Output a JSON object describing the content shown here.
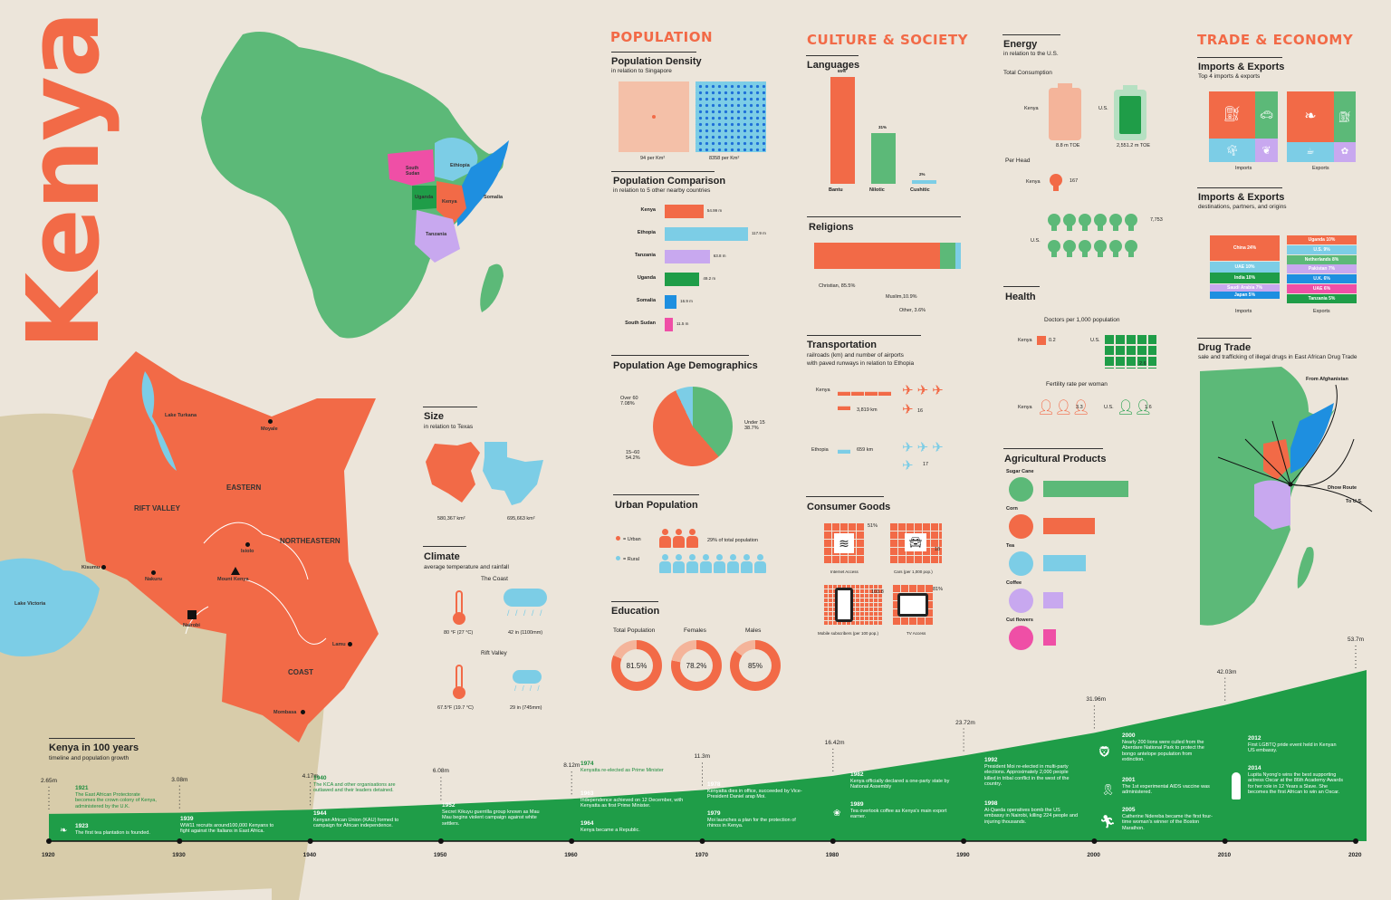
{
  "title": "Kenya",
  "colors": {
    "orange": "#f26a47",
    "green": "#5cb978",
    "darkgreen": "#1f9d48",
    "blue": "#7ccde6",
    "purple": "#c8a8ef",
    "pink": "#ef4fa6",
    "bg": "#ece5da",
    "sand": "#d8ccaa"
  },
  "map": {
    "africa_labels": {
      "south_sudan": "South Sudan",
      "ethiopia": "Ethiopia",
      "uganda": "Uganda",
      "kenya": "Kenya",
      "somalia": "Somalia",
      "tanzania": "Tanzania"
    },
    "kenya_labels": {
      "lake_turkana": "Lake Turkana",
      "moyale": "Moyale",
      "eastern": "EASTERN",
      "rift_valley": "RIFT VALLEY",
      "northeastern": "NORTHEASTERN",
      "isiolo": "Isiolo",
      "kisumu": "Kisumu",
      "nakuru": "Nakuru",
      "mount_kenya": "Mount Kenya",
      "lake_victoria": "Lake Victoria",
      "nairobi": "Nairobi",
      "lamu": "Lamu",
      "coast": "COAST",
      "mombasa": "Mombasa"
    }
  },
  "size": {
    "title": "Size",
    "subtitle": "in relation to Texas",
    "kenya_area": "580,367 km²",
    "texas_area": "695,663 km²"
  },
  "climate": {
    "title": "Climate",
    "subtitle": "average temperature and rainfall",
    "coast_label": "The Coast",
    "coast_temp": "80 °F (27 °C)",
    "coast_rain": "42 in (1100mm)",
    "rift_label": "Rift Valley",
    "rift_temp": "67.5°F (19.7 °C)",
    "rift_rain": "29 in (745mm)"
  },
  "population": {
    "section": "POPULATION",
    "density": {
      "title": "Population Density",
      "subtitle": "in relation to Singapore",
      "kenya": "94 per Km²",
      "singapore": "8358 per Km²"
    },
    "comparison": {
      "title": "Population Comparison",
      "subtitle": "in relation to 5 other nearby countries",
      "rows": [
        {
          "name": "Kenya",
          "value": 54.99,
          "label": "54.99 m",
          "color": "#f26a47"
        },
        {
          "name": "Ethopia",
          "value": 117.9,
          "label": "117.9 m",
          "color": "#7ccde6"
        },
        {
          "name": "Tanzania",
          "value": 63.8,
          "label": "63.8 m",
          "color": "#c8a8ef"
        },
        {
          "name": "Uganda",
          "value": 49.2,
          "label": "49.2 m",
          "color": "#1f9d48"
        },
        {
          "name": "Somalia",
          "value": 16.9,
          "label": "16.9 m",
          "color": "#1e8fe0"
        },
        {
          "name": "South Sudan",
          "value": 11.5,
          "label": "11.5 m",
          "color": "#ef4fa6"
        }
      ]
    },
    "age": {
      "title": "Population Age Demographics",
      "over60": "Over 60",
      "over60_pct": "7.08%",
      "under15": "Under 15",
      "under15_pct": "38.7%",
      "mid": "15–60",
      "mid_pct": "54.2%"
    },
    "urban": {
      "title": "Urban Population",
      "urban": "= Urban",
      "rural": "= Rural",
      "note": "29% of total population"
    },
    "education": {
      "title": "Education",
      "total": "Total Population",
      "females": "Females",
      "males": "Males",
      "total_pct": "81.5%",
      "females_pct": "78.2%",
      "males_pct": "85%",
      "total_val": 81.5,
      "females_val": 78.2,
      "males_val": 85
    }
  },
  "culture": {
    "section": "CULTURE & SOCIETY",
    "languages": {
      "title": "Languages",
      "items": [
        {
          "name": "Bantu",
          "pct": "65%",
          "value": 65,
          "color": "#f26a47"
        },
        {
          "name": "Nilotic",
          "pct": "31%",
          "value": 31,
          "color": "#5cb978"
        },
        {
          "name": "Cushitic",
          "pct": "2%",
          "value": 2,
          "color": "#7ccde6"
        }
      ]
    },
    "religions": {
      "title": "Religions",
      "christian": "Christian, 85.5%",
      "muslim": "Muslim,10.9%",
      "other": "Other, 3.6%"
    },
    "transport": {
      "title": "Transportation",
      "subtitle1": "railroads (km) and number of airports",
      "subtitle2": "with paved runways in relation to Ethopia",
      "kenya": "Kenya",
      "kenya_rail": "3,819 km",
      "kenya_air": "16",
      "ethiopia": "Ethopia",
      "eth_rail": "659 km",
      "eth_air": "17"
    },
    "consumer": {
      "title": "Consumer Goods",
      "internet_pct": "51%",
      "internet": "Internet Access",
      "cars_val": "18",
      "cars": "Cars (per 1,000 pop.)",
      "mobile_val": "103.8",
      "mobile": "Mobile subscribers (per 100 pop.)",
      "tv_pct": "81%",
      "tv": "TV Access"
    }
  },
  "energy": {
    "title": "Energy",
    "subtitle": "in relation to the U.S.",
    "total": "Total Consumption",
    "kenya": "Kenya",
    "us": "U.S.",
    "kenya_val": "8.8 m TOE",
    "us_val": "2,551.2 m TOE",
    "per_head": "Per Head",
    "kenya_head": "167",
    "us_head": "7,753"
  },
  "health": {
    "title": "Health",
    "doctors": "Doctors per 1,000 population",
    "kenya": "Kenya",
    "us": "U.S.",
    "kenya_doc": "0.2",
    "us_doc": "2.6",
    "fertility": "Fertility rate per woman",
    "kenya_fert": "3.3",
    "us_fert": "1.6"
  },
  "agri": {
    "title": "Agricultural Products",
    "items": [
      {
        "name": "Sugar Cane",
        "color": "#5cb978",
        "value": 94
      },
      {
        "name": "Corn",
        "color": "#f26a47",
        "value": 57
      },
      {
        "name": "Tea",
        "color": "#7ccde6",
        "value": 47
      },
      {
        "name": "Coffee",
        "color": "#c8a8ef",
        "value": 22
      },
      {
        "name": "Cut flowers",
        "color": "#ef4fa6",
        "value": 14
      }
    ]
  },
  "trade": {
    "section": "TRADE & ECONOMY",
    "ie1": {
      "title": "Imports & Exports",
      "subtitle": "Top 4 imports & exports",
      "imports": "Imports",
      "exports": "Exports"
    },
    "ie2": {
      "title": "Imports & Exports",
      "subtitle": "destinations, partners, and origins",
      "imports": [
        {
          "label": "China 24%",
          "color": "#f26a47"
        },
        {
          "label": "UAE 10%",
          "color": "#7ccde6"
        },
        {
          "label": "India 10%",
          "color": "#1f9d48"
        },
        {
          "label": "Saudi Arabia 7%",
          "color": "#c8a8ef"
        },
        {
          "label": "Japan 5%",
          "color": "#1e8fe0"
        }
      ],
      "exports": [
        {
          "label": "Uganda 10%",
          "color": "#f26a47"
        },
        {
          "label": "U.S. 9%",
          "color": "#7ccde6"
        },
        {
          "label": "Netherlands 8%",
          "color": "#5cb978"
        },
        {
          "label": "Pakistan 7%",
          "color": "#c8a8ef"
        },
        {
          "label": "U.K. 6%",
          "color": "#1e8fe0"
        },
        {
          "label": "UAE 6%",
          "color": "#ef4fa6"
        },
        {
          "label": "Tanzania 5%",
          "color": "#1f9d48"
        }
      ],
      "imports_lbl": "Imports",
      "exports_lbl": "Exports"
    },
    "drug": {
      "title": "Drug Trade",
      "subtitle": "sale and trafficking of illegal drugs in East African Drug Trade",
      "from": "From Afghanistan",
      "dhow": "Dhow Route",
      "to_us": "To U.S."
    }
  },
  "timeline": {
    "title": "Kenya in 100 years",
    "subtitle": "timeline and population growth",
    "years": [
      "1920",
      "1930",
      "1940",
      "1950",
      "1960",
      "1970",
      "1980",
      "1990",
      "2000",
      "2010",
      "2020"
    ],
    "pop": [
      {
        "year": 1920,
        "label": "2.65m"
      },
      {
        "year": 1930,
        "label": "3.08m"
      },
      {
        "year": 1940,
        "label": "4.17m"
      },
      {
        "year": 1950,
        "label": "6.08m"
      },
      {
        "year": 1960,
        "label": "8.12m"
      },
      {
        "year": 1970,
        "label": "11.3m"
      },
      {
        "year": 1980,
        "label": "16.42m"
      },
      {
        "year": 1990,
        "label": "23.72m"
      },
      {
        "year": 2000,
        "label": "31.96m"
      },
      {
        "year": 2010,
        "label": "42.03m"
      },
      {
        "year": 2020,
        "label": "53.7m"
      }
    ],
    "events": {
      "e1921": {
        "year": "1921",
        "text": "The East African Protectorate becomes the crown colony of Kenya, administered by the U.K."
      },
      "e1923": {
        "year": "1923",
        "text": "The first tea plantation is founded."
      },
      "e1939": {
        "year": "1939",
        "text": "WW11 recruits around100,000 Kenyans to fight against the Italians in East Africa."
      },
      "e1940": {
        "year": "1940",
        "text": "The KCA and other organisations are outlawed and their leaders detained."
      },
      "e1944": {
        "year": "1944",
        "text": "Kenyan African Union (KAU) formed to campaign for African independence."
      },
      "e1952": {
        "year": "1952",
        "text": "Secret Kikuyu guerrilla group known as Mau Mau begins violent campaign against white settlers."
      },
      "e1974": {
        "year": "1974",
        "text": "Kenyatta re-elected as Prime Minister"
      },
      "e1963": {
        "year": "1963",
        "text": "Independence achieved on 12 December, with Kenyatta as first Prime Minister."
      },
      "e1964": {
        "year": "1964",
        "text": "Kenya became a Republic."
      },
      "e1978": {
        "year": "1978",
        "text": "Kenyatta dies in office, succeeded by Vice-President Daniel arap Moi."
      },
      "e1979": {
        "year": "1979",
        "text": "Moi launches a plan for the protection of rhinos in Kenya."
      },
      "e1982": {
        "year": "1982",
        "text": "Kenya officially declared a one-party state by National Assembly"
      },
      "e1989": {
        "year": "1989",
        "text": "Tea overtook coffee as Kenya's main export earner."
      },
      "e1992": {
        "year": "1992",
        "text": "President Moi re-elected in multi-party elections. Approximately 2,000 people killed in tribal conflict in the west of the country."
      },
      "e1998": {
        "year": "1998",
        "text": "Al-Qaeda operatives bomb the US embassy in Nairobi, killing 224 people and injuring thousands."
      },
      "e2000": {
        "year": "2000",
        "text": "Nearly 200 lions were culled from the Aberdare National Park to protect the bongo antelope population from extinction."
      },
      "e2001": {
        "year": "2001",
        "text": "The 1st experimental AIDS vaccine was administered."
      },
      "e2005": {
        "year": "2005",
        "text": "Catherine Ndereba became the first four-time woman's winner of the Boston Marathon."
      },
      "e2012": {
        "year": "2012",
        "text": "First LGBTQ pride event held in Kenyan US embassy."
      },
      "e2014": {
        "year": "2014",
        "text": "Lupita Nyong'o wins the best supporting actress Oscar at the 86th Academy Awards for her role in 12 Years a Slave. She becomes the first African to win an Oscar."
      }
    }
  }
}
